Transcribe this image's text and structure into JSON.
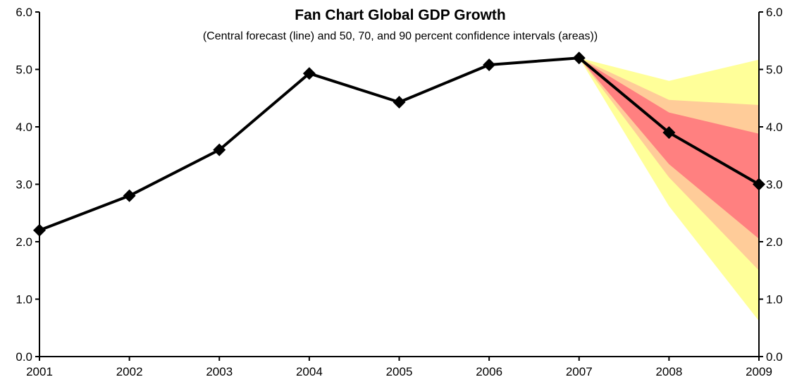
{
  "chart_data": {
    "type": "line",
    "title": "Fan Chart Global GDP Growth",
    "subtitle": "(Central forecast (line) and 50, 70, and 90 percent confidence intervals (areas))",
    "xlabel": "",
    "ylabel": "",
    "x": [
      "2001",
      "2002",
      "2003",
      "2004",
      "2005",
      "2006",
      "2007",
      "2008",
      "2009"
    ],
    "ylim": [
      0,
      6
    ],
    "y_ticks": [
      "0.0",
      "1.0",
      "2.0",
      "3.0",
      "4.0",
      "5.0",
      "6.0"
    ],
    "grid": false,
    "legend": "none",
    "series": [
      {
        "values": [
          2.2,
          2.8,
          3.6,
          4.93,
          4.43,
          5.08,
          5.2,
          3.9,
          3.0
        ],
        "color": "#000000",
        "marker": "diamond"
      }
    ],
    "bands": [
      {
        "level": 90,
        "color": "#FFFF99",
        "x": [
          "2007",
          "2008",
          "2009"
        ],
        "lower": [
          5.2,
          2.62,
          0.62
        ],
        "upper": [
          5.2,
          4.8,
          5.17
        ]
      },
      {
        "level": 70,
        "color": "#FFCC99",
        "x": [
          "2007",
          "2008",
          "2009"
        ],
        "lower": [
          5.2,
          3.12,
          1.5
        ],
        "upper": [
          5.2,
          4.47,
          4.38
        ]
      },
      {
        "level": 50,
        "color": "#FF8080",
        "x": [
          "2007",
          "2008",
          "2009"
        ],
        "lower": [
          5.2,
          3.35,
          2.05
        ],
        "upper": [
          5.2,
          4.25,
          3.88
        ]
      }
    ]
  }
}
